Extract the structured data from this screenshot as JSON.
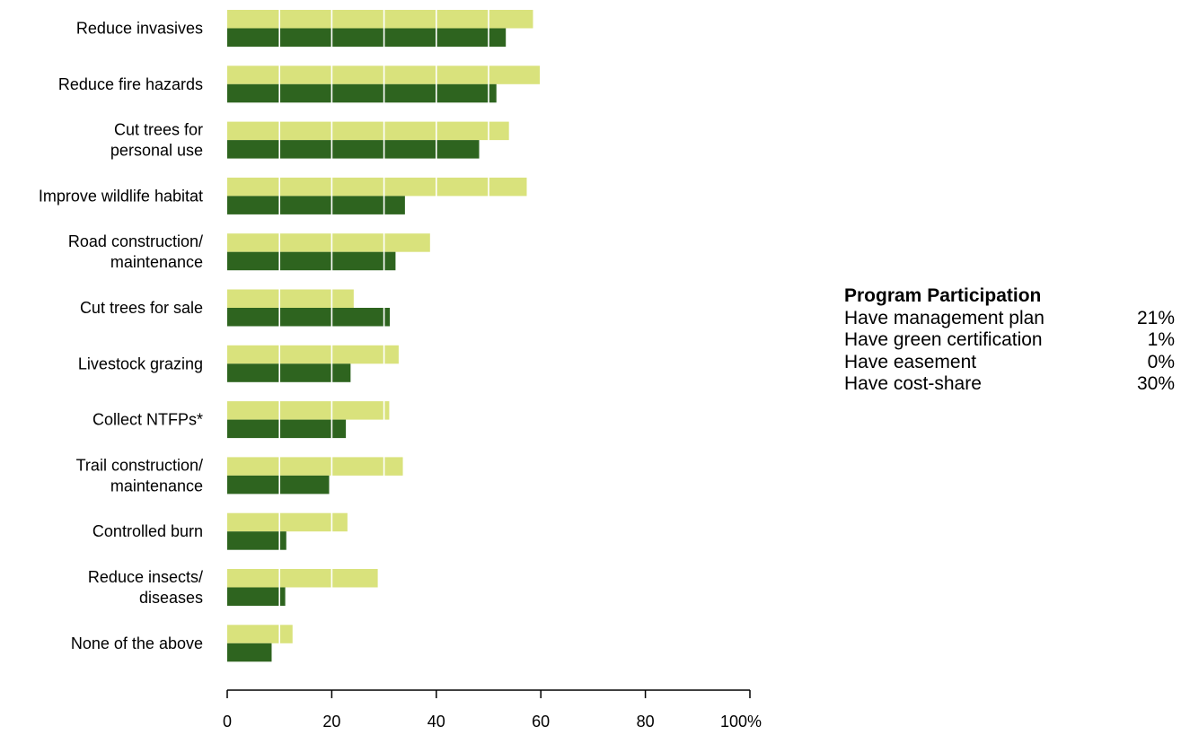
{
  "chart_data": {
    "type": "bar",
    "orientation": "horizontal",
    "categories": [
      [
        "Reduce invasives"
      ],
      [
        "Reduce fire hazards"
      ],
      [
        "Cut trees for",
        "personal use"
      ],
      [
        "Improve wildlife habitat"
      ],
      [
        "Road construction/",
        "maintenance"
      ],
      [
        "Cut trees for sale"
      ],
      [
        "Livestock grazing"
      ],
      [
        "Collect NTFPs*"
      ],
      [
        "Trail construction/",
        "maintenance"
      ],
      [
        "Controlled burn"
      ],
      [
        "Reduce insects/",
        "diseases"
      ],
      [
        "None of the above"
      ]
    ],
    "series": [
      {
        "color": "#d9e27c",
        "values": [
          58.5,
          59.8,
          53.9,
          57.3,
          38.8,
          24.2,
          32.8,
          31.0,
          33.6,
          23.0,
          28.8,
          12.5
        ]
      },
      {
        "color": "#2e641f",
        "values": [
          53.3,
          51.5,
          48.2,
          34.0,
          32.2,
          31.1,
          23.6,
          22.7,
          19.5,
          11.3,
          11.1,
          8.5
        ]
      }
    ],
    "xlim": [
      0,
      100
    ],
    "xticks": [
      0,
      20,
      40,
      60,
      80,
      100
    ],
    "xtick_labels": [
      "0",
      "20",
      "40",
      "60",
      "80",
      "100%"
    ],
    "gridlines": [
      10,
      20,
      30,
      40,
      50
    ],
    "gridline_color": "#ffffff",
    "title": "",
    "xlabel": "",
    "ylabel": ""
  },
  "program_participation": {
    "title": "Program Participation",
    "rows": [
      {
        "label": "Have management plan",
        "value": "21%"
      },
      {
        "label": "Have green certification",
        "value": "1%"
      },
      {
        "label": "Have easement",
        "value": "0%"
      },
      {
        "label": "Have cost-share",
        "value": "30%"
      }
    ]
  }
}
